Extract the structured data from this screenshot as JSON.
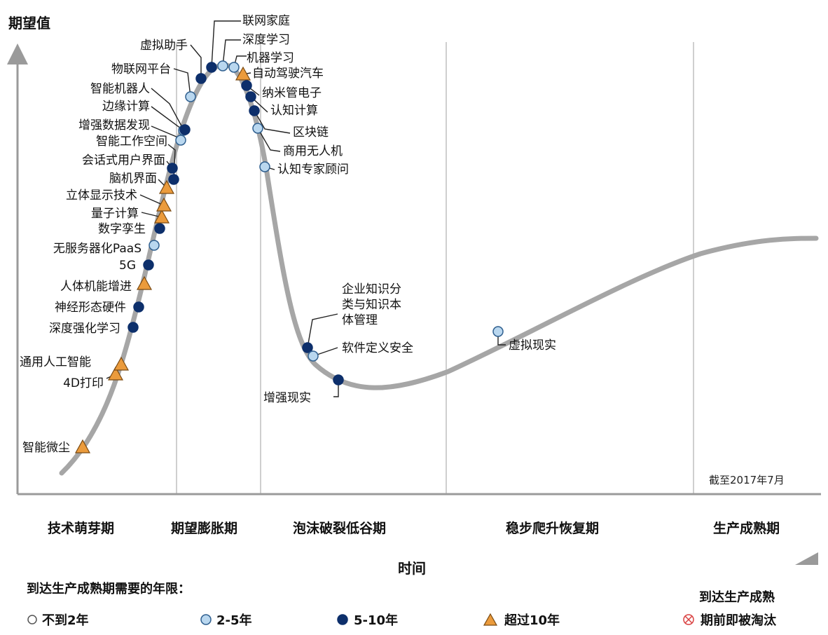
{
  "chart_data": {
    "type": "scatter",
    "title": "",
    "ylabel": "期望值",
    "xlabel": "时间",
    "note": "截至2017年7月",
    "phases": [
      "技术萌芽期",
      "期望膨胀期",
      "泡沫破裂低谷期",
      "稳步爬升恢复期",
      "生产成熟期"
    ],
    "legend": {
      "title": "到达生产成熟期需要的年限：",
      "items": [
        {
          "key": "lt2",
          "label": "不到2年"
        },
        {
          "key": "y2_5",
          "label": "2-5年"
        },
        {
          "key": "y5_10",
          "label": "5-10年"
        },
        {
          "key": "gt10",
          "label": "超过10年"
        },
        {
          "key": "obsolete",
          "label": "期前即被淘汰"
        }
      ],
      "obsolete_heading": "到达生产成熟"
    },
    "colors": {
      "curve": "#a6a6a6",
      "lt2": "#ffffff",
      "y2_5": "#b9d7ef",
      "y5_10": "#0d2f6b",
      "gt10": "#eb9b3c",
      "obsolete": "#d94040"
    },
    "technologies": [
      {
        "name": "智能微尘",
        "category": "gt10"
      },
      {
        "name": "4D打印",
        "category": "gt10"
      },
      {
        "name": "通用人工智能",
        "category": "gt10"
      },
      {
        "name": "深度强化学习",
        "category": "y5_10"
      },
      {
        "name": "神经形态硬件",
        "category": "y5_10"
      },
      {
        "name": "人体机能增进",
        "category": "gt10"
      },
      {
        "name": "5G",
        "category": "y5_10"
      },
      {
        "name": "无服务器化PaaS",
        "category": "y2_5"
      },
      {
        "name": "数字孪生",
        "category": "y5_10"
      },
      {
        "name": "量子计算",
        "category": "gt10"
      },
      {
        "name": "立体显示技术",
        "category": "gt10"
      },
      {
        "name": "脑机界面",
        "category": "gt10"
      },
      {
        "name": "会话式用户界面",
        "category": "y5_10"
      },
      {
        "name": "智能工作空间",
        "category": "y5_10"
      },
      {
        "name": "增强数据发现",
        "category": "y2_5"
      },
      {
        "name": "边缘计算",
        "category": "y2_5"
      },
      {
        "name": "智能机器人",
        "category": "y5_10"
      },
      {
        "name": "物联网平台",
        "category": "y2_5"
      },
      {
        "name": "虚拟助手",
        "category": "y5_10"
      },
      {
        "name": "联网家庭",
        "category": "y5_10"
      },
      {
        "name": "深度学习",
        "category": "y2_5"
      },
      {
        "name": "机器学习",
        "category": "y2_5"
      },
      {
        "name": "自动驾驶汽车",
        "category": "gt10"
      },
      {
        "name": "纳米管电子",
        "category": "y5_10"
      },
      {
        "name": "认知计算",
        "category": "y5_10"
      },
      {
        "name": "区块链",
        "category": "y5_10"
      },
      {
        "name": "商用无人机",
        "category": "y2_5"
      },
      {
        "name": "认知专家顾问",
        "category": "y2_5"
      },
      {
        "name": "企业知识分类与知识本体管理",
        "category": "y5_10"
      },
      {
        "name": "软件定义安全",
        "category": "y2_5"
      },
      {
        "name": "增强现实",
        "category": "y5_10"
      },
      {
        "name": "虚拟现实",
        "category": "y2_5"
      }
    ]
  }
}
